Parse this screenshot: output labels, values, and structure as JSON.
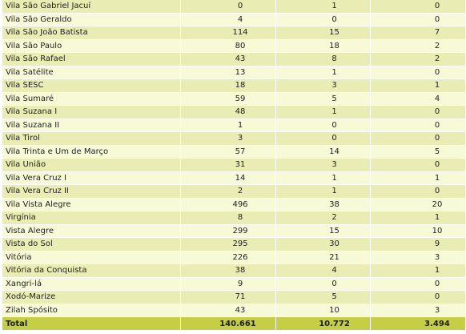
{
  "table": {
    "rows": [
      {
        "name": "Vila São Gabriel Jacuí",
        "v1": "0",
        "v2": "1",
        "v3": "0"
      },
      {
        "name": "Vila São Geraldo",
        "v1": "4",
        "v2": "0",
        "v3": "0"
      },
      {
        "name": "Vila São João Batista",
        "v1": "114",
        "v2": "15",
        "v3": "7"
      },
      {
        "name": "Vila São Paulo",
        "v1": "80",
        "v2": "18",
        "v3": "2"
      },
      {
        "name": "Vila São Rafael",
        "v1": "43",
        "v2": "8",
        "v3": "2"
      },
      {
        "name": "Vila Satélite",
        "v1": "13",
        "v2": "1",
        "v3": "0"
      },
      {
        "name": "Vila SESC",
        "v1": "18",
        "v2": "3",
        "v3": "1"
      },
      {
        "name": "Vila Sumaré",
        "v1": "59",
        "v2": "5",
        "v3": "4"
      },
      {
        "name": "Vila Suzana I",
        "v1": "48",
        "v2": "1",
        "v3": "0"
      },
      {
        "name": "Vila Suzana II",
        "v1": "1",
        "v2": "0",
        "v3": "0"
      },
      {
        "name": "Vila Tirol",
        "v1": "3",
        "v2": "0",
        "v3": "0"
      },
      {
        "name": "Vila Trinta e Um de Março",
        "v1": "57",
        "v2": "14",
        "v3": "5"
      },
      {
        "name": "Vila União",
        "v1": "31",
        "v2": "3",
        "v3": "0"
      },
      {
        "name": "Vila Vera Cruz I",
        "v1": "14",
        "v2": "1",
        "v3": "1"
      },
      {
        "name": "Vila Vera Cruz II",
        "v1": "2",
        "v2": "1",
        "v3": "0"
      },
      {
        "name": "Vila Vista Alegre",
        "v1": "496",
        "v2": "38",
        "v3": "20"
      },
      {
        "name": "Virgínia",
        "v1": "8",
        "v2": "2",
        "v3": "1"
      },
      {
        "name": "Vista Alegre",
        "v1": "299",
        "v2": "15",
        "v3": "10"
      },
      {
        "name": "Vista do Sol",
        "v1": "295",
        "v2": "30",
        "v3": "9"
      },
      {
        "name": "Vitória",
        "v1": "226",
        "v2": "21",
        "v3": "3"
      },
      {
        "name": "Vitória da Conquista",
        "v1": "38",
        "v2": "4",
        "v3": "1"
      },
      {
        "name": "Xangri-lá",
        "v1": "9",
        "v2": "0",
        "v3": "0"
      },
      {
        "name": "Xodó-Marize",
        "v1": "71",
        "v2": "5",
        "v3": "0"
      },
      {
        "name": "Zilah Spósito",
        "v1": "43",
        "v2": "10",
        "v3": "3"
      }
    ],
    "total": {
      "name": "Total",
      "v1": "140.661",
      "v2": "10.772",
      "v3": "3.494"
    }
  },
  "colors": {
    "row_light": "#f7f9d7",
    "row_dark": "#e9edb4",
    "total_bg": "#c4cf45"
  }
}
